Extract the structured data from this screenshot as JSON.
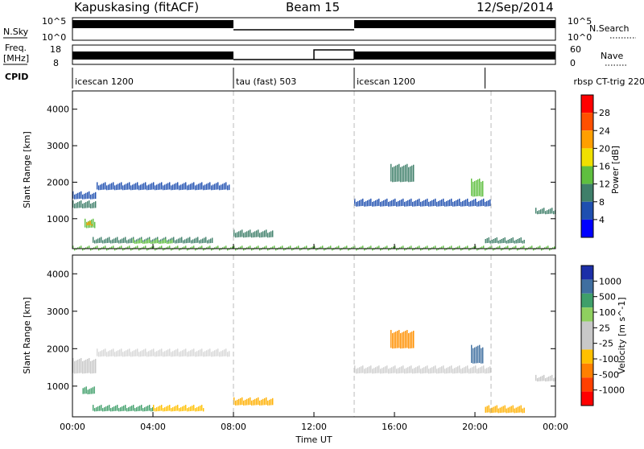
{
  "header": {
    "station": "Kapuskasing (fitACF)",
    "beam": "Beam 15",
    "date": "12/Sep/2014"
  },
  "strip_panel": {
    "nsky_label": "N.Sky",
    "nsearch_label": "N.Search",
    "nsky_ticks": [
      "10^5",
      "10^0"
    ],
    "nsearch_ticks": [
      "10^5",
      "10^0"
    ],
    "freq_label_1": "Freq.",
    "freq_label_2": "[MHz]",
    "freq_ticks": [
      "18",
      "8"
    ],
    "nave_label": "Nave",
    "nave_ticks": [
      "60",
      "0"
    ],
    "cpid_label": "CPID"
  },
  "cpid_segments": [
    {
      "name": "icescan 1200",
      "start": 0,
      "end": 8
    },
    {
      "name": "tau (fast) 503",
      "start": 8,
      "end": 14
    },
    {
      "name": "icescan 1200",
      "start": 14,
      "end": 20.5
    },
    {
      "name": "rbsp CT-trig 220",
      "start": 20.5,
      "end": 24
    }
  ],
  "x_axis": {
    "label": "Time UT",
    "ticks": [
      "00:00",
      "04:00",
      "08:00",
      "12:00",
      "16:00",
      "20:00",
      "00:00"
    ],
    "range_hours": [
      0,
      24
    ]
  },
  "chart_data": [
    {
      "type": "heatmap",
      "name": "power",
      "ylabel": "Slant Range [km]",
      "ylim": [
        180,
        4500
      ],
      "yticks": [
        "1000",
        "2000",
        "3000",
        "4000"
      ],
      "colorbar_label": "Power [dB]",
      "colorbar_ticks": [
        "4",
        "8",
        "12",
        "16",
        "20",
        "24",
        "28"
      ],
      "colorbar_colors": [
        "#0000ff",
        "#1f4fb0",
        "#3f7f6a",
        "#5fbf3f",
        "#f0e000",
        "#ff9f00",
        "#ff5000",
        "#ff0000"
      ],
      "echo_bands": [
        {
          "t0": 0.0,
          "t1": 1.2,
          "r0": 1500,
          "r1": 1750,
          "color": "#1f4fb0"
        },
        {
          "t0": 0.0,
          "t1": 1.2,
          "r0": 1250,
          "r1": 1500,
          "color": "#3f7f6a"
        },
        {
          "t0": 0.6,
          "t1": 1.1,
          "r0": 700,
          "r1": 1000,
          "color": "#5fbf3f"
        },
        {
          "t0": 0.7,
          "t1": 1.0,
          "r0": 800,
          "r1": 950,
          "color": "#ff9f00"
        },
        {
          "t0": 1.2,
          "t1": 7.8,
          "r0": 1750,
          "r1": 2000,
          "color": "#1f4fb0"
        },
        {
          "t0": 1.0,
          "t1": 7.0,
          "r0": 300,
          "r1": 500,
          "color": "#3f7f6a"
        },
        {
          "t0": 3.0,
          "t1": 5.0,
          "r0": 300,
          "r1": 450,
          "color": "#5fbf3f"
        },
        {
          "t0": 8.0,
          "t1": 10.0,
          "r0": 450,
          "r1": 700,
          "color": "#3f7f6a"
        },
        {
          "t0": 14.0,
          "t1": 20.8,
          "r0": 1300,
          "r1": 1550,
          "color": "#1f4fb0"
        },
        {
          "t0": 15.8,
          "t1": 17.0,
          "r0": 1900,
          "r1": 2500,
          "color": "#3f7f6a"
        },
        {
          "t0": 19.8,
          "t1": 20.4,
          "r0": 1500,
          "r1": 2100,
          "color": "#5fbf3f"
        },
        {
          "t0": 20.5,
          "t1": 22.5,
          "r0": 300,
          "r1": 500,
          "color": "#3f7f6a"
        },
        {
          "t0": 23.0,
          "t1": 24.0,
          "r0": 1100,
          "r1": 1300,
          "color": "#3f7f6a"
        },
        {
          "t0": 0.0,
          "t1": 24.0,
          "r0": 180,
          "r1": 260,
          "color": "#5fbf3f"
        }
      ]
    },
    {
      "type": "heatmap",
      "name": "velocity",
      "ylabel": "Slant Range [km]",
      "ylim": [
        180,
        4500
      ],
      "yticks": [
        "1000",
        "2000",
        "3000",
        "4000"
      ],
      "colorbar_label": "Velocity [m s^-1]",
      "colorbar_ticks": [
        "1000",
        "500",
        "100",
        "25",
        "-25",
        "-100",
        "-500",
        "-1000"
      ],
      "colorbar_colors": [
        "#1c2fa8",
        "#3f6fa0",
        "#3f9f6a",
        "#8fd05f",
        "#c8c8c8",
        "#c8c8c8",
        "#ffc000",
        "#ff8000",
        "#ff4000",
        "#ff0000"
      ],
      "echo_bands": [
        {
          "t0": 0.0,
          "t1": 1.2,
          "r0": 1250,
          "r1": 1750,
          "color": "#c8c8c8"
        },
        {
          "t0": 0.5,
          "t1": 1.1,
          "r0": 750,
          "r1": 1000,
          "color": "#3f9f6a"
        },
        {
          "t0": 1.2,
          "t1": 7.8,
          "r0": 1750,
          "r1": 2000,
          "color": "#d8d8d8"
        },
        {
          "t0": 1.0,
          "t1": 4.0,
          "r0": 300,
          "r1": 500,
          "color": "#3f9f6a"
        },
        {
          "t0": 4.0,
          "t1": 6.5,
          "r0": 300,
          "r1": 500,
          "color": "#ffc000"
        },
        {
          "t0": 8.0,
          "t1": 10.0,
          "r0": 450,
          "r1": 700,
          "color": "#ffb000"
        },
        {
          "t0": 14.0,
          "t1": 20.8,
          "r0": 1300,
          "r1": 1550,
          "color": "#d0d0d0"
        },
        {
          "t0": 15.8,
          "t1": 17.0,
          "r0": 1900,
          "r1": 2500,
          "color": "#ff9000"
        },
        {
          "t0": 19.8,
          "t1": 20.4,
          "r0": 1500,
          "r1": 2100,
          "color": "#3f6fa0"
        },
        {
          "t0": 20.5,
          "t1": 22.5,
          "r0": 250,
          "r1": 500,
          "color": "#ffb000"
        },
        {
          "t0": 23.0,
          "t1": 24.0,
          "r0": 1100,
          "r1": 1300,
          "color": "#c8c8c8"
        }
      ]
    }
  ]
}
